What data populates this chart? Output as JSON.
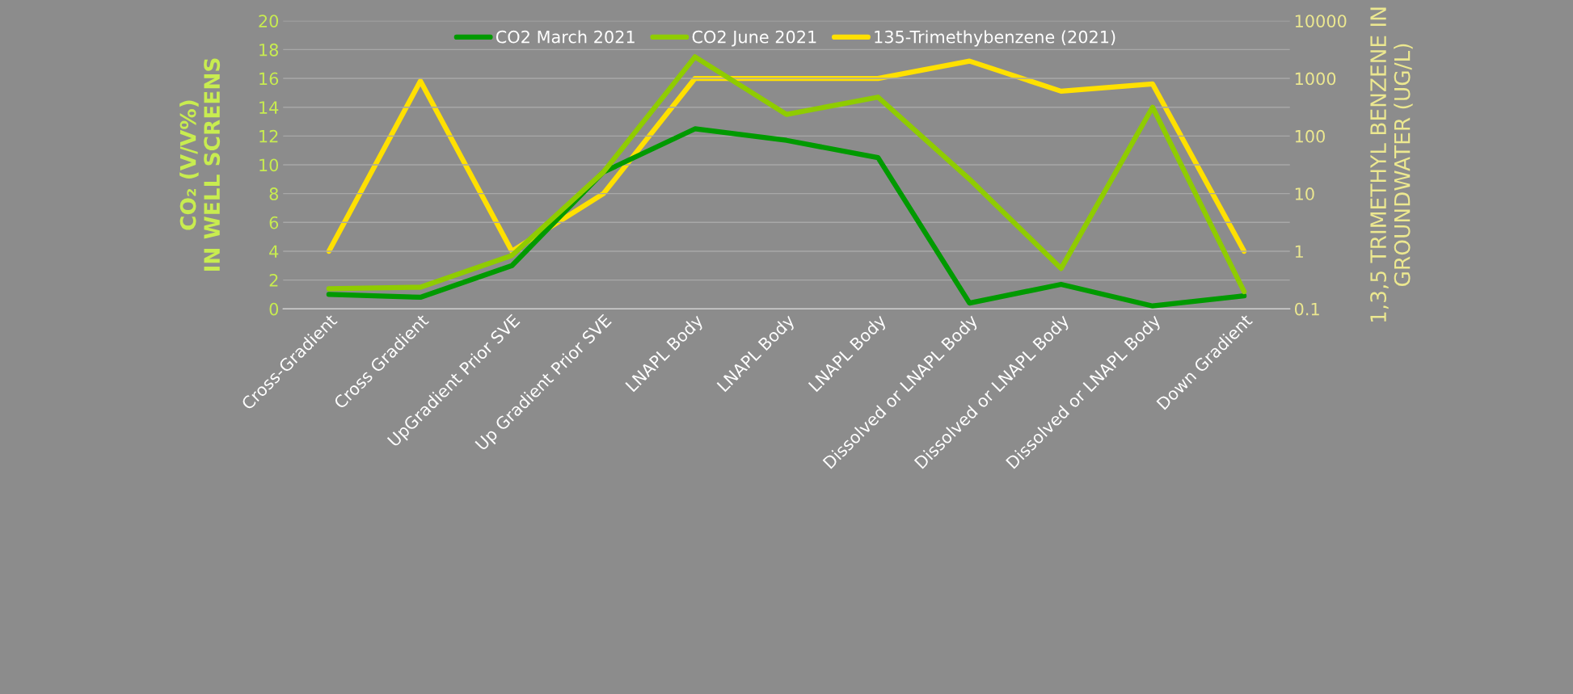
{
  "chart_data": {
    "type": "line",
    "categories": [
      "Cross-Gradient",
      "Cross Gradient",
      "UpGradient Prior SVE",
      "Up Gradient Prior SVE",
      "LNAPL Body",
      "LNAPL Body",
      "LNAPL Body",
      "Dissolved or LNAPL Body",
      "Dissolved or LNAPL Body",
      "Dissolved or LNAPL Body",
      "Down Gradient"
    ],
    "series": [
      {
        "name": "CO2 March 2021",
        "color": "#009a00",
        "values": [
          1.0,
          0.8,
          3.0,
          9.5,
          12.5,
          11.7,
          10.5,
          0.4,
          1.7,
          0.2,
          0.9
        ]
      },
      {
        "name": "CO2 June 2021",
        "color": "#8fcc00",
        "values": [
          1.4,
          1.5,
          3.7,
          9.5,
          17.5,
          13.5,
          14.7,
          9.0,
          2.8,
          14.0,
          1.2
        ]
      },
      {
        "name": "135-Trimethybenzene (2021)",
        "color": "#ffe000",
        "axis": "y2",
        "values": [
          1,
          900,
          1,
          10,
          1000,
          1000,
          1000,
          2000,
          600,
          800,
          1
        ]
      }
    ],
    "ylabel": "CO₂ (V/V%)\nIN WELL SCREENS",
    "y2label": "1,3,5 TRIMETHYL BENZENE IN\nGROUNDWATER (UG/L)",
    "ylim": [
      0,
      20
    ],
    "yticks": [
      0,
      2,
      4,
      6,
      8,
      10,
      12,
      14,
      16,
      18,
      20
    ],
    "y2lim": [
      0.1,
      10000
    ],
    "y2ticks": [
      0.1,
      1,
      10,
      100,
      1000,
      10000
    ],
    "log": "y2",
    "grid": "y",
    "legend": "top",
    "line_style": "solid",
    "marker": "none"
  }
}
